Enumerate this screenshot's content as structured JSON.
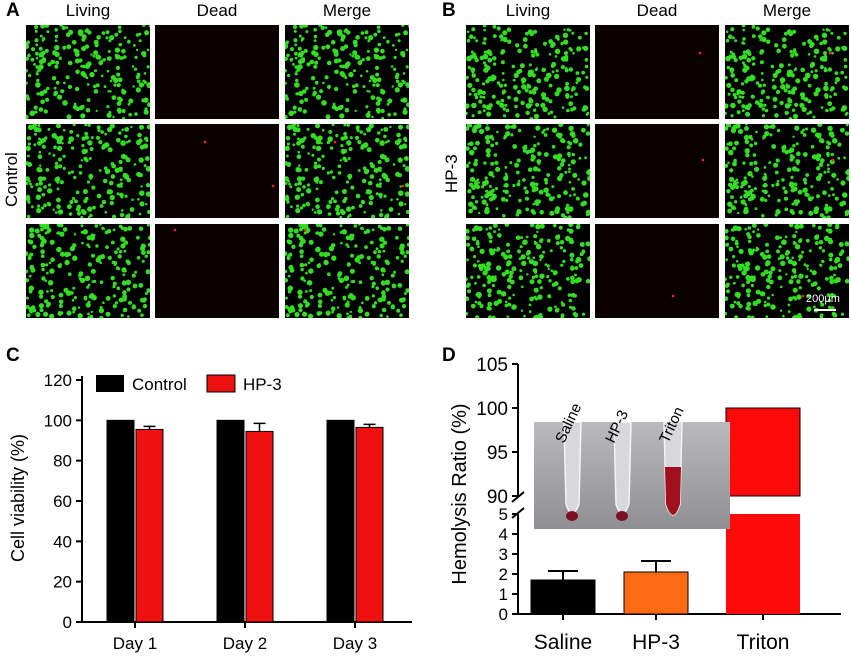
{
  "panels": {
    "a": {
      "letter": "A",
      "row_label": "Control",
      "columns": [
        "Living",
        "Dead",
        "Merge"
      ]
    },
    "b": {
      "letter": "B",
      "row_label": "HP-3",
      "columns": [
        "Living",
        "Dead",
        "Merge"
      ],
      "scale_bar": "200μm"
    },
    "c": {
      "letter": "C"
    },
    "d": {
      "letter": "D",
      "photo_labels": [
        "Saline",
        "HP-3",
        "Triton"
      ]
    }
  },
  "colors": {
    "living": "#33dd22",
    "dead": "#ff2222",
    "control": "#000000",
    "hp3": "#ee1111",
    "saline": "#000000",
    "hp3_d": "#ff6a13",
    "triton": "#ff0a0a"
  },
  "chart_data": [
    {
      "type": "bar",
      "title": "",
      "xlabel": "",
      "ylabel": "Cell viability (%)",
      "categories": [
        "Day 1",
        "Day 2",
        "Day 3"
      ],
      "series": [
        {
          "name": "Control",
          "values": [
            100,
            100,
            100
          ],
          "errors": [
            0,
            0,
            0
          ]
        },
        {
          "name": "HP-3",
          "values": [
            95.5,
            94.5,
            96.5
          ],
          "errors": [
            1.5,
            4,
            1.5
          ]
        }
      ],
      "ylim": [
        0,
        120
      ],
      "yticks": [
        "0",
        "20",
        "40",
        "60",
        "80",
        "100",
        "120"
      ],
      "legend": "top"
    },
    {
      "type": "bar",
      "title": "",
      "xlabel": "",
      "ylabel": "Hemolysis Ratio (%)",
      "categories": [
        "Saline",
        "HP-3",
        "Triton"
      ],
      "values": [
        1.7,
        2.1,
        100
      ],
      "errors": [
        0.45,
        0.55,
        0
      ],
      "y_axis_break": [
        5,
        90
      ],
      "yticks_lower": [
        "0",
        "1",
        "2",
        "3",
        "4",
        "5"
      ],
      "yticks_upper": [
        "90",
        "95",
        "100",
        "105"
      ],
      "ylim": [
        0,
        105
      ]
    }
  ]
}
